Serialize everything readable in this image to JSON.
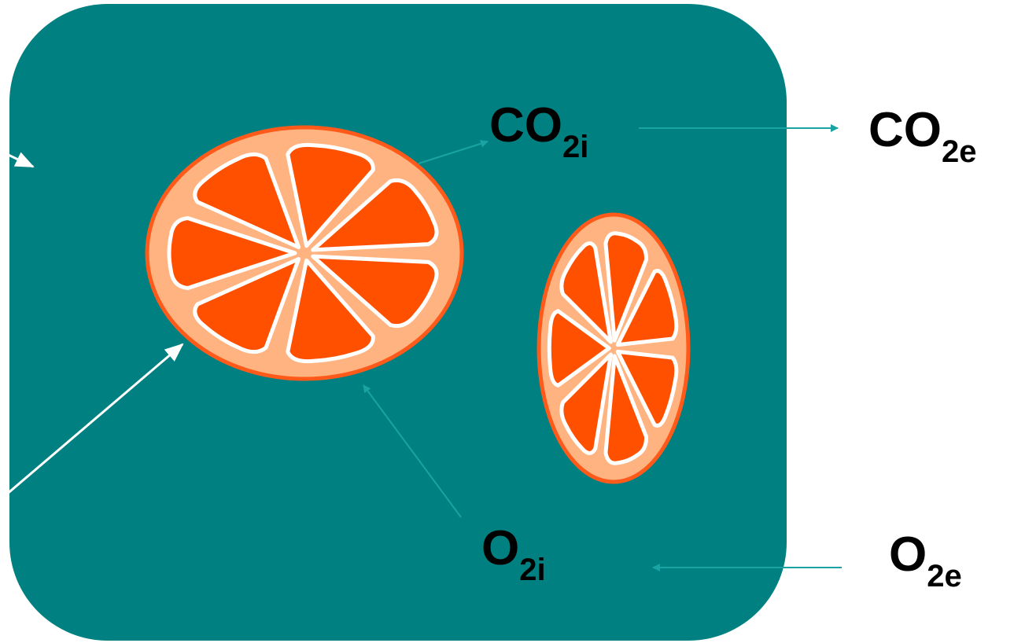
{
  "labels": [
    {
      "main": "CO",
      "sub": "2i"
    },
    {
      "main": "CO",
      "sub": "2e"
    },
    {
      "main": "O",
      "sub": "2i"
    },
    {
      "main": "O",
      "sub": "2e"
    }
  ]
}
